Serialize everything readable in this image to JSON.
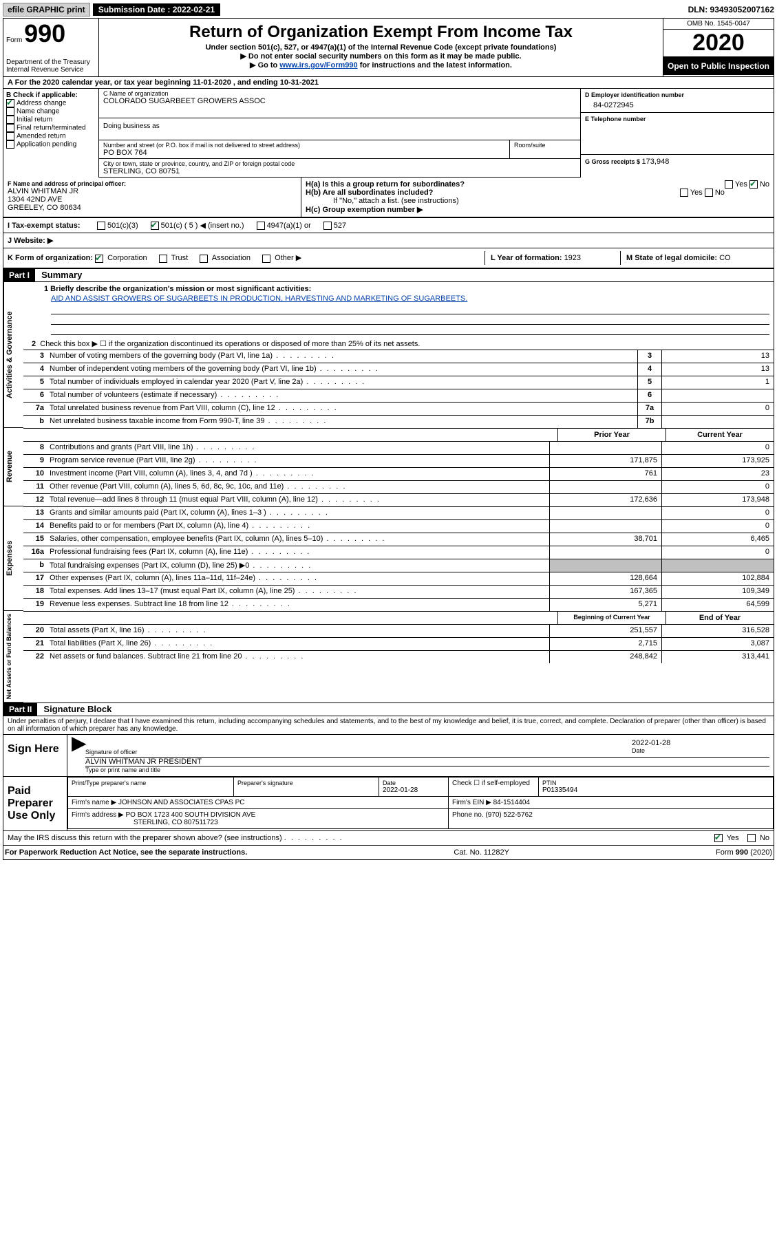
{
  "topbar": {
    "efile": "efile GRAPHIC print",
    "submission": "Submission Date : 2022-02-21",
    "dln": "DLN: 93493052007162"
  },
  "header": {
    "form_word": "Form",
    "form_num": "990",
    "dept": "Department of the Treasury\nInternal Revenue Service",
    "title": "Return of Organization Exempt From Income Tax",
    "subtitle": "Under section 501(c), 527, or 4947(a)(1) of the Internal Revenue Code (except private foundations)",
    "instr1": "▶ Do not enter social security numbers on this form as it may be made public.",
    "instr2_pre": "▶ Go to ",
    "instr2_link": "www.irs.gov/Form990",
    "instr2_post": " for instructions and the latest information.",
    "omb": "OMB No. 1545-0047",
    "year": "2020",
    "open_public": "Open to Public Inspection"
  },
  "line_a": "A   For the 2020 calendar year, or tax year beginning 11-01-2020    , and ending 10-31-2021",
  "section_b": {
    "title": "B Check if applicable:",
    "items": [
      {
        "label": "Address change",
        "checked": true
      },
      {
        "label": "Name change",
        "checked": false
      },
      {
        "label": "Initial return",
        "checked": false
      },
      {
        "label": "Final return/terminated",
        "checked": false
      },
      {
        "label": "Amended return",
        "checked": false
      },
      {
        "label": "Application pending",
        "checked": false
      }
    ]
  },
  "section_c": {
    "label": "C Name of organization",
    "value": "COLORADO SUGARBEET GROWERS ASSOC",
    "dba_label": "Doing business as",
    "street_label": "Number and street (or P.O. box if mail is not delivered to street address)",
    "street": "PO BOX 764",
    "room_label": "Room/suite",
    "city_label": "City or town, state or province, country, and ZIP or foreign postal code",
    "city": "STERLING, CO  80751"
  },
  "section_d": {
    "label": "D Employer identification number",
    "value": "84-0272945"
  },
  "section_e": {
    "label": "E Telephone number",
    "value": ""
  },
  "section_g": {
    "label": "G Gross receipts $ ",
    "value": "173,948"
  },
  "section_f": {
    "label": "F  Name and address of principal officer:",
    "name": "ALVIN WHITMAN JR",
    "addr1": "1304 42ND AVE",
    "addr2": "GREELEY, CO  80634"
  },
  "section_h": {
    "ha": "H(a)  Is this a group return for subordinates?",
    "ha_yes": "Yes",
    "ha_no": "No",
    "hb": "H(b)  Are all subordinates included?",
    "hb_yes": "Yes",
    "hb_no": "No",
    "hb_note": "If \"No,\" attach a list. (see instructions)",
    "hc": "H(c)  Group exemption number ▶"
  },
  "section_i": {
    "label": "I   Tax-exempt status:",
    "opt1": "501(c)(3)",
    "opt2": "501(c) ( 5 ) ◀ (insert no.)",
    "opt3": "4947(a)(1) or",
    "opt4": "527"
  },
  "section_j": {
    "label": "J   Website: ▶"
  },
  "section_k": {
    "label": "K Form of organization:",
    "opt1": "Corporation",
    "opt2": "Trust",
    "opt3": "Association",
    "opt4": "Other ▶"
  },
  "section_l": {
    "label": "L Year of formation: ",
    "value": "1923"
  },
  "section_m": {
    "label": "M State of legal domicile: ",
    "value": "CO"
  },
  "part1": {
    "header": "Part I",
    "title": "Summary",
    "mission_label": "1  Briefly describe the organization's mission or most significant activities:",
    "mission": "AID AND ASSIST GROWERS OF SUGARBEETS IN PRODUCTION, HARVESTING AND MARKETING OF SUGARBEETS.",
    "line2": "Check this box ▶ ☐  if the organization discontinued its operations or disposed of more than 25% of its net assets.",
    "vlab1": "Activities & Governance",
    "vlab2": "Revenue",
    "vlab3": "Expenses",
    "vlab4": "Net Assets or Fund Balances",
    "lines_gov": [
      {
        "n": "3",
        "t": "Number of voting members of the governing body (Part VI, line 1a)",
        "box": "3",
        "v": "13"
      },
      {
        "n": "4",
        "t": "Number of independent voting members of the governing body (Part VI, line 1b)",
        "box": "4",
        "v": "13"
      },
      {
        "n": "5",
        "t": "Total number of individuals employed in calendar year 2020 (Part V, line 2a)",
        "box": "5",
        "v": "1"
      },
      {
        "n": "6",
        "t": "Total number of volunteers (estimate if necessary)",
        "box": "6",
        "v": ""
      },
      {
        "n": "7a",
        "t": "Total unrelated business revenue from Part VIII, column (C), line 12",
        "box": "7a",
        "v": "0"
      },
      {
        "n": "b",
        "t": "Net unrelated business taxable income from Form 990-T, line 39",
        "box": "7b",
        "v": ""
      }
    ],
    "col_prior": "Prior Year",
    "col_current": "Current Year",
    "lines_rev": [
      {
        "n": "8",
        "t": "Contributions and grants (Part VIII, line 1h)",
        "p": "",
        "c": "0"
      },
      {
        "n": "9",
        "t": "Program service revenue (Part VIII, line 2g)",
        "p": "171,875",
        "c": "173,925"
      },
      {
        "n": "10",
        "t": "Investment income (Part VIII, column (A), lines 3, 4, and 7d )",
        "p": "761",
        "c": "23"
      },
      {
        "n": "11",
        "t": "Other revenue (Part VIII, column (A), lines 5, 6d, 8c, 9c, 10c, and 11e)",
        "p": "",
        "c": "0"
      },
      {
        "n": "12",
        "t": "Total revenue—add lines 8 through 11 (must equal Part VIII, column (A), line 12)",
        "p": "172,636",
        "c": "173,948"
      }
    ],
    "lines_exp": [
      {
        "n": "13",
        "t": "Grants and similar amounts paid (Part IX, column (A), lines 1–3 )",
        "p": "",
        "c": "0"
      },
      {
        "n": "14",
        "t": "Benefits paid to or for members (Part IX, column (A), line 4)",
        "p": "",
        "c": "0"
      },
      {
        "n": "15",
        "t": "Salaries, other compensation, employee benefits (Part IX, column (A), lines 5–10)",
        "p": "38,701",
        "c": "6,465"
      },
      {
        "n": "16a",
        "t": "Professional fundraising fees (Part IX, column (A), line 11e)",
        "p": "",
        "c": "0"
      },
      {
        "n": "b",
        "t": "Total fundraising expenses (Part IX, column (D), line 25) ▶0",
        "p": "SHADED",
        "c": "SHADED"
      },
      {
        "n": "17",
        "t": "Other expenses (Part IX, column (A), lines 11a–11d, 11f–24e)",
        "p": "128,664",
        "c": "102,884"
      },
      {
        "n": "18",
        "t": "Total expenses. Add lines 13–17 (must equal Part IX, column (A), line 25)",
        "p": "167,365",
        "c": "109,349"
      },
      {
        "n": "19",
        "t": "Revenue less expenses. Subtract line 18 from line 12",
        "p": "5,271",
        "c": "64,599"
      }
    ],
    "col_begin": "Beginning of Current Year",
    "col_end": "End of Year",
    "lines_net": [
      {
        "n": "20",
        "t": "Total assets (Part X, line 16)",
        "p": "251,557",
        "c": "316,528"
      },
      {
        "n": "21",
        "t": "Total liabilities (Part X, line 26)",
        "p": "2,715",
        "c": "3,087"
      },
      {
        "n": "22",
        "t": "Net assets or fund balances. Subtract line 21 from line 20",
        "p": "248,842",
        "c": "313,441"
      }
    ]
  },
  "part2": {
    "header": "Part II",
    "title": "Signature Block",
    "perjury": "Under penalties of perjury, I declare that I have examined this return, including accompanying schedules and statements, and to the best of my knowledge and belief, it is true, correct, and complete. Declaration of preparer (other than officer) is based on all information of which preparer has any knowledge.",
    "sign_here": "Sign Here",
    "sig_officer": "Signature of officer",
    "sig_date_label": "Date",
    "sig_date": "2022-01-28",
    "officer_name": "ALVIN WHITMAN JR PRESIDENT",
    "type_name": "Type or print name and title",
    "paid": "Paid Preparer Use Only",
    "prep_name_label": "Print/Type preparer's name",
    "prep_sig_label": "Preparer's signature",
    "prep_date_label": "Date",
    "prep_date": "2022-01-28",
    "check_self": "Check ☐ if self-employed",
    "ptin_label": "PTIN",
    "ptin": "P01335494",
    "firm_name_label": "Firm's name      ▶",
    "firm_name": "JOHNSON AND ASSOCIATES CPAS PC",
    "firm_ein_label": "Firm's EIN ▶",
    "firm_ein": "84-1514404",
    "firm_addr_label": "Firm's address ▶",
    "firm_addr1": "PO BOX 1723 400 SOUTH DIVISION AVE",
    "firm_addr2": "STERLING, CO  807511723",
    "phone_label": "Phone no.",
    "phone": "(970) 522-5762",
    "discuss": "May the IRS discuss this return with the preparer shown above? (see instructions)",
    "discuss_yes": "Yes",
    "discuss_no": "No"
  },
  "footer": {
    "left": "For Paperwork Reduction Act Notice, see the separate instructions.",
    "mid": "Cat. No. 11282Y",
    "right": "Form 990 (2020)"
  }
}
